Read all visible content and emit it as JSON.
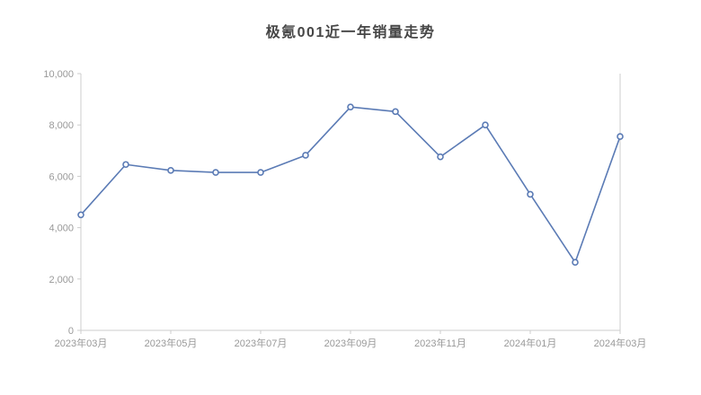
{
  "chart_data": {
    "type": "line",
    "title": "极氪001近一年销量走势",
    "x": [
      "2023年03月",
      "2023年04月",
      "2023年05月",
      "2023年06月",
      "2023年07月",
      "2023年08月",
      "2023年09月",
      "2023年10月",
      "2023年11月",
      "2023年12月",
      "2024年01月",
      "2024年02月",
      "2024年03月"
    ],
    "values": [
      4500,
      6460,
      6230,
      6150,
      6150,
      6820,
      8700,
      8520,
      6760,
      8000,
      5300,
      2650,
      7550
    ],
    "x_tick_indices": [
      0,
      2,
      4,
      6,
      8,
      10,
      12
    ],
    "x_tick_labels": [
      "2023年03月",
      "2023年05月",
      "2023年07月",
      "2023年09月",
      "2023年11月",
      "2024年01月",
      "2024年03月"
    ],
    "y_ticks": [
      0,
      2000,
      4000,
      6000,
      8000,
      10000
    ],
    "ylim": [
      0,
      10000
    ],
    "xlabel": "",
    "ylabel": "",
    "grid": false,
    "legend_position": "none",
    "line_color": "#5b7bb5",
    "marker_fill": "#ffffff",
    "axis_color": "#cccccc",
    "tick_label_color": "#999999",
    "title_color": "#464646",
    "background_color": "#ffffff"
  }
}
